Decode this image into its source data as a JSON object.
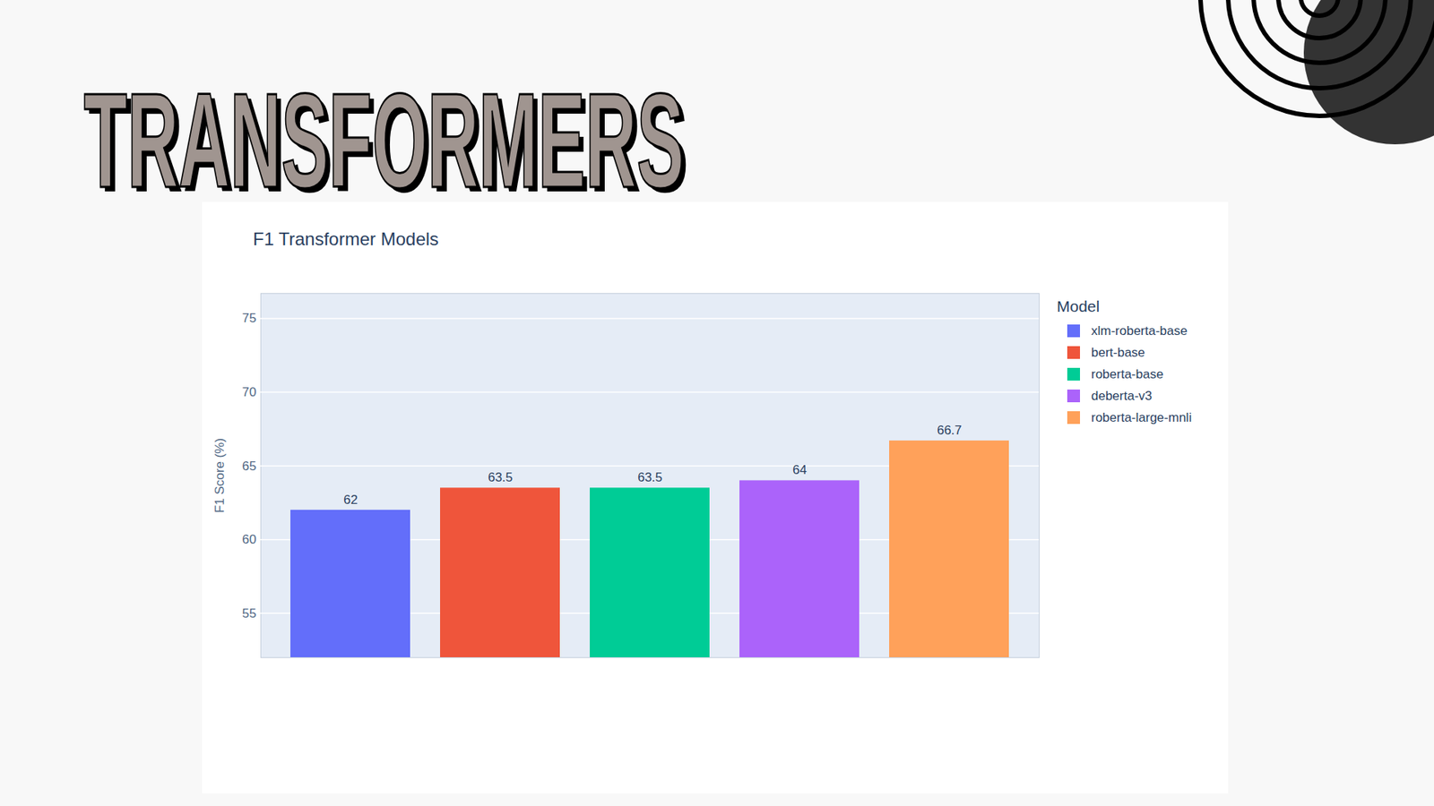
{
  "page": {
    "heading": "TRANSFORMERS"
  },
  "chart_data": {
    "type": "bar",
    "title": "F1 Transformer Models",
    "y_label": "F1 Score (%)",
    "legend_title": "Model",
    "categories": [
      "xlm-roberta-base",
      "bert-base",
      "roberta-base",
      "deberta-v3",
      "roberta-large-mnli"
    ],
    "values": [
      62,
      63.5,
      63.5,
      64,
      66.7
    ],
    "colors": [
      "#636efa",
      "#ef553b",
      "#00cc96",
      "#ab63fa",
      "#ffa15a"
    ],
    "ylim": [
      52,
      76.7
    ],
    "yticks": [
      55,
      60,
      65,
      70,
      75
    ],
    "grid": true,
    "legend": "right",
    "data_labels": true,
    "tick_labels": "y"
  }
}
